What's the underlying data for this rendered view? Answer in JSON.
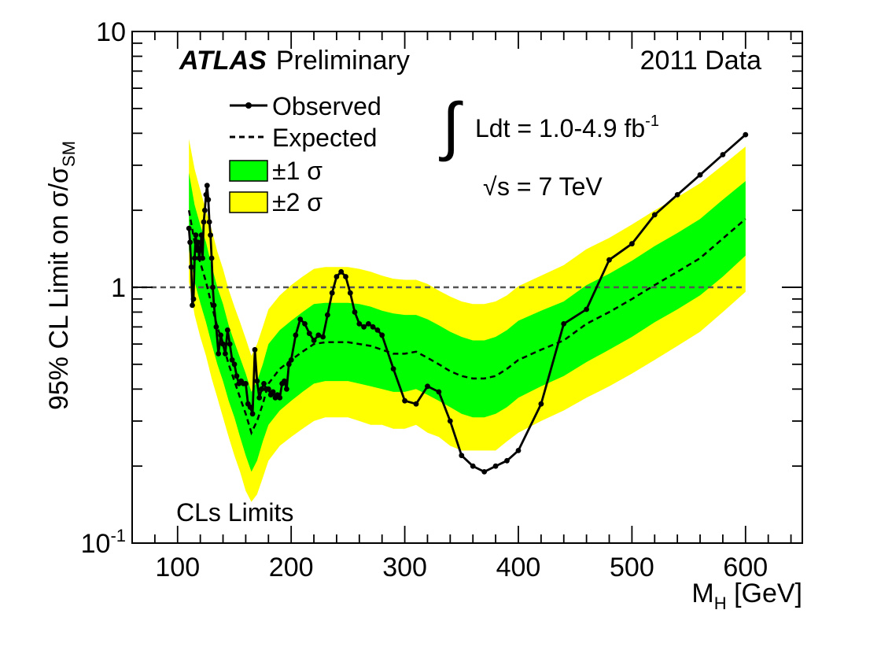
{
  "chart_data": {
    "type": "line",
    "experiment": "ATLAS",
    "status": "Preliminary",
    "dataset": "2011 Data",
    "luminosity_label": "Ldt = 1.0-4.9 fb",
    "luminosity_exponent": "-1",
    "energy_label": "s = 7 TeV",
    "method_label": "CLs Limits",
    "xlabel_main": "M",
    "xlabel_sub": "H",
    "xlabel_unit": " [GeV]",
    "ylabel_main": "95% CL Limit on σ/σ",
    "ylabel_sub": "SM",
    "xlim": [
      60,
      650
    ],
    "ylim": [
      0.1,
      10
    ],
    "yscale": "log",
    "x_ticks": [
      100,
      200,
      300,
      400,
      500,
      600
    ],
    "y_tick_labels": [
      {
        "value": 10,
        "base": "10",
        "exp": ""
      },
      {
        "value": 1,
        "base": "1",
        "exp": ""
      },
      {
        "value": 0.1,
        "base": "10",
        "exp": "-1"
      }
    ],
    "reference_line": 1,
    "legend": {
      "observed": "Observed",
      "expected": "Expected",
      "band1": "±1 σ",
      "band2": "±2 σ"
    },
    "colors": {
      "observed": "#000000",
      "expected": "#000000",
      "band1": "#00ff00",
      "band2": "#ffff00",
      "reference": "#555555"
    },
    "observed": {
      "x": [
        110,
        111,
        112,
        113,
        114,
        115,
        116,
        117,
        118,
        119,
        120,
        121,
        122,
        123,
        124,
        125,
        126,
        127,
        128,
        129,
        130,
        131,
        132,
        134,
        136,
        138,
        140,
        142,
        144,
        146,
        148,
        150,
        152,
        154,
        156,
        158,
        160,
        162,
        164,
        166,
        168,
        170,
        172,
        174,
        176,
        178,
        180,
        182,
        184,
        186,
        188,
        190,
        192,
        194,
        196,
        198,
        200,
        204,
        208,
        212,
        216,
        220,
        224,
        228,
        232,
        236,
        240,
        244,
        248,
        252,
        256,
        260,
        264,
        268,
        272,
        276,
        280,
        290,
        300,
        310,
        320,
        330,
        340,
        350,
        360,
        370,
        380,
        390,
        400,
        420,
        440,
        460,
        480,
        500,
        520,
        540,
        560,
        580,
        600
      ],
      "y": [
        1.7,
        1.5,
        1.2,
        0.85,
        0.9,
        1.3,
        1.6,
        1.4,
        1.5,
        1.3,
        1.4,
        1.6,
        1.3,
        1.8,
        2.0,
        2.3,
        2.5,
        2.2,
        1.8,
        1.6,
        1.3,
        1.0,
        0.85,
        0.7,
        0.55,
        0.65,
        0.6,
        0.55,
        0.68,
        0.6,
        0.52,
        0.5,
        0.45,
        0.42,
        0.43,
        0.42,
        0.42,
        0.35,
        0.34,
        0.32,
        0.57,
        0.43,
        0.37,
        0.4,
        0.42,
        0.4,
        0.4,
        0.38,
        0.39,
        0.37,
        0.38,
        0.37,
        0.42,
        0.43,
        0.4,
        0.5,
        0.52,
        0.65,
        0.75,
        0.72,
        0.66,
        0.62,
        0.65,
        0.64,
        0.78,
        0.95,
        1.1,
        1.15,
        1.1,
        0.95,
        0.8,
        0.72,
        0.7,
        0.72,
        0.7,
        0.68,
        0.65,
        0.48,
        0.36,
        0.35,
        0.41,
        0.39,
        0.3,
        0.22,
        0.2,
        0.19,
        0.2,
        0.21,
        0.23,
        0.35,
        0.72,
        0.82,
        1.28,
        1.48,
        1.92,
        2.3,
        2.75,
        3.3,
        3.95
      ]
    },
    "expected": {
      "x": [
        110,
        115,
        120,
        125,
        130,
        135,
        140,
        145,
        150,
        155,
        160,
        165,
        170,
        175,
        180,
        190,
        200,
        210,
        220,
        230,
        240,
        250,
        260,
        270,
        280,
        290,
        300,
        310,
        320,
        330,
        340,
        350,
        360,
        370,
        380,
        390,
        400,
        420,
        440,
        460,
        480,
        500,
        520,
        540,
        560,
        580,
        600
      ],
      "y": [
        2.0,
        1.5,
        1.25,
        1.05,
        0.85,
        0.7,
        0.6,
        0.5,
        0.43,
        0.37,
        0.32,
        0.27,
        0.3,
        0.35,
        0.42,
        0.48,
        0.52,
        0.56,
        0.6,
        0.61,
        0.61,
        0.61,
        0.6,
        0.59,
        0.57,
        0.55,
        0.55,
        0.56,
        0.53,
        0.5,
        0.47,
        0.45,
        0.44,
        0.44,
        0.45,
        0.48,
        0.52,
        0.57,
        0.62,
        0.72,
        0.8,
        0.9,
        1.02,
        1.15,
        1.3,
        1.55,
        1.85
      ]
    },
    "band_1sigma": {
      "x": [
        110,
        115,
        120,
        125,
        130,
        135,
        140,
        145,
        150,
        155,
        160,
        165,
        170,
        175,
        180,
        190,
        200,
        210,
        220,
        230,
        240,
        250,
        260,
        270,
        280,
        290,
        300,
        310,
        320,
        330,
        340,
        350,
        360,
        370,
        380,
        390,
        400,
        420,
        440,
        460,
        480,
        500,
        520,
        540,
        560,
        580,
        600
      ],
      "low": [
        1.4,
        1.05,
        0.87,
        0.73,
        0.6,
        0.5,
        0.43,
        0.36,
        0.31,
        0.26,
        0.22,
        0.19,
        0.21,
        0.25,
        0.29,
        0.33,
        0.36,
        0.39,
        0.42,
        0.43,
        0.43,
        0.43,
        0.42,
        0.41,
        0.4,
        0.39,
        0.39,
        0.4,
        0.38,
        0.36,
        0.34,
        0.32,
        0.31,
        0.31,
        0.32,
        0.34,
        0.37,
        0.41,
        0.45,
        0.51,
        0.57,
        0.64,
        0.73,
        0.82,
        0.93,
        1.1,
        1.33
      ],
      "high": [
        2.8,
        2.1,
        1.75,
        1.5,
        1.21,
        1.0,
        0.86,
        0.71,
        0.61,
        0.53,
        0.46,
        0.39,
        0.43,
        0.5,
        0.6,
        0.68,
        0.74,
        0.8,
        0.86,
        0.87,
        0.87,
        0.87,
        0.86,
        0.84,
        0.81,
        0.79,
        0.78,
        0.78,
        0.75,
        0.71,
        0.67,
        0.64,
        0.62,
        0.62,
        0.64,
        0.68,
        0.74,
        0.81,
        0.88,
        1.02,
        1.13,
        1.27,
        1.45,
        1.63,
        1.85,
        2.2,
        2.6
      ]
    },
    "band_2sigma": {
      "x": [
        110,
        115,
        120,
        125,
        130,
        135,
        140,
        145,
        150,
        155,
        160,
        165,
        170,
        175,
        180,
        190,
        200,
        210,
        220,
        230,
        240,
        250,
        260,
        270,
        280,
        290,
        300,
        310,
        320,
        330,
        340,
        350,
        360,
        370,
        380,
        390,
        400,
        420,
        440,
        460,
        480,
        500,
        520,
        540,
        560,
        580,
        600
      ],
      "low": [
        1.05,
        0.78,
        0.64,
        0.54,
        0.44,
        0.37,
        0.31,
        0.26,
        0.22,
        0.19,
        0.16,
        0.145,
        0.155,
        0.18,
        0.21,
        0.24,
        0.26,
        0.28,
        0.3,
        0.31,
        0.31,
        0.31,
        0.3,
        0.29,
        0.29,
        0.28,
        0.28,
        0.29,
        0.27,
        0.26,
        0.24,
        0.23,
        0.23,
        0.23,
        0.23,
        0.25,
        0.27,
        0.3,
        0.33,
        0.37,
        0.41,
        0.46,
        0.52,
        0.59,
        0.67,
        0.8,
        0.96
      ],
      "high": [
        3.8,
        2.9,
        2.4,
        2.0,
        1.68,
        1.38,
        1.18,
        0.98,
        0.84,
        0.73,
        0.63,
        0.54,
        0.6,
        0.7,
        0.82,
        0.93,
        1.02,
        1.1,
        1.18,
        1.2,
        1.2,
        1.2,
        1.18,
        1.15,
        1.11,
        1.08,
        1.07,
        1.07,
        1.03,
        0.97,
        0.92,
        0.88,
        0.86,
        0.86,
        0.88,
        0.93,
        1.01,
        1.11,
        1.22,
        1.41,
        1.56,
        1.76,
        2.0,
        2.25,
        2.55,
        3.0,
        3.55
      ]
    }
  }
}
